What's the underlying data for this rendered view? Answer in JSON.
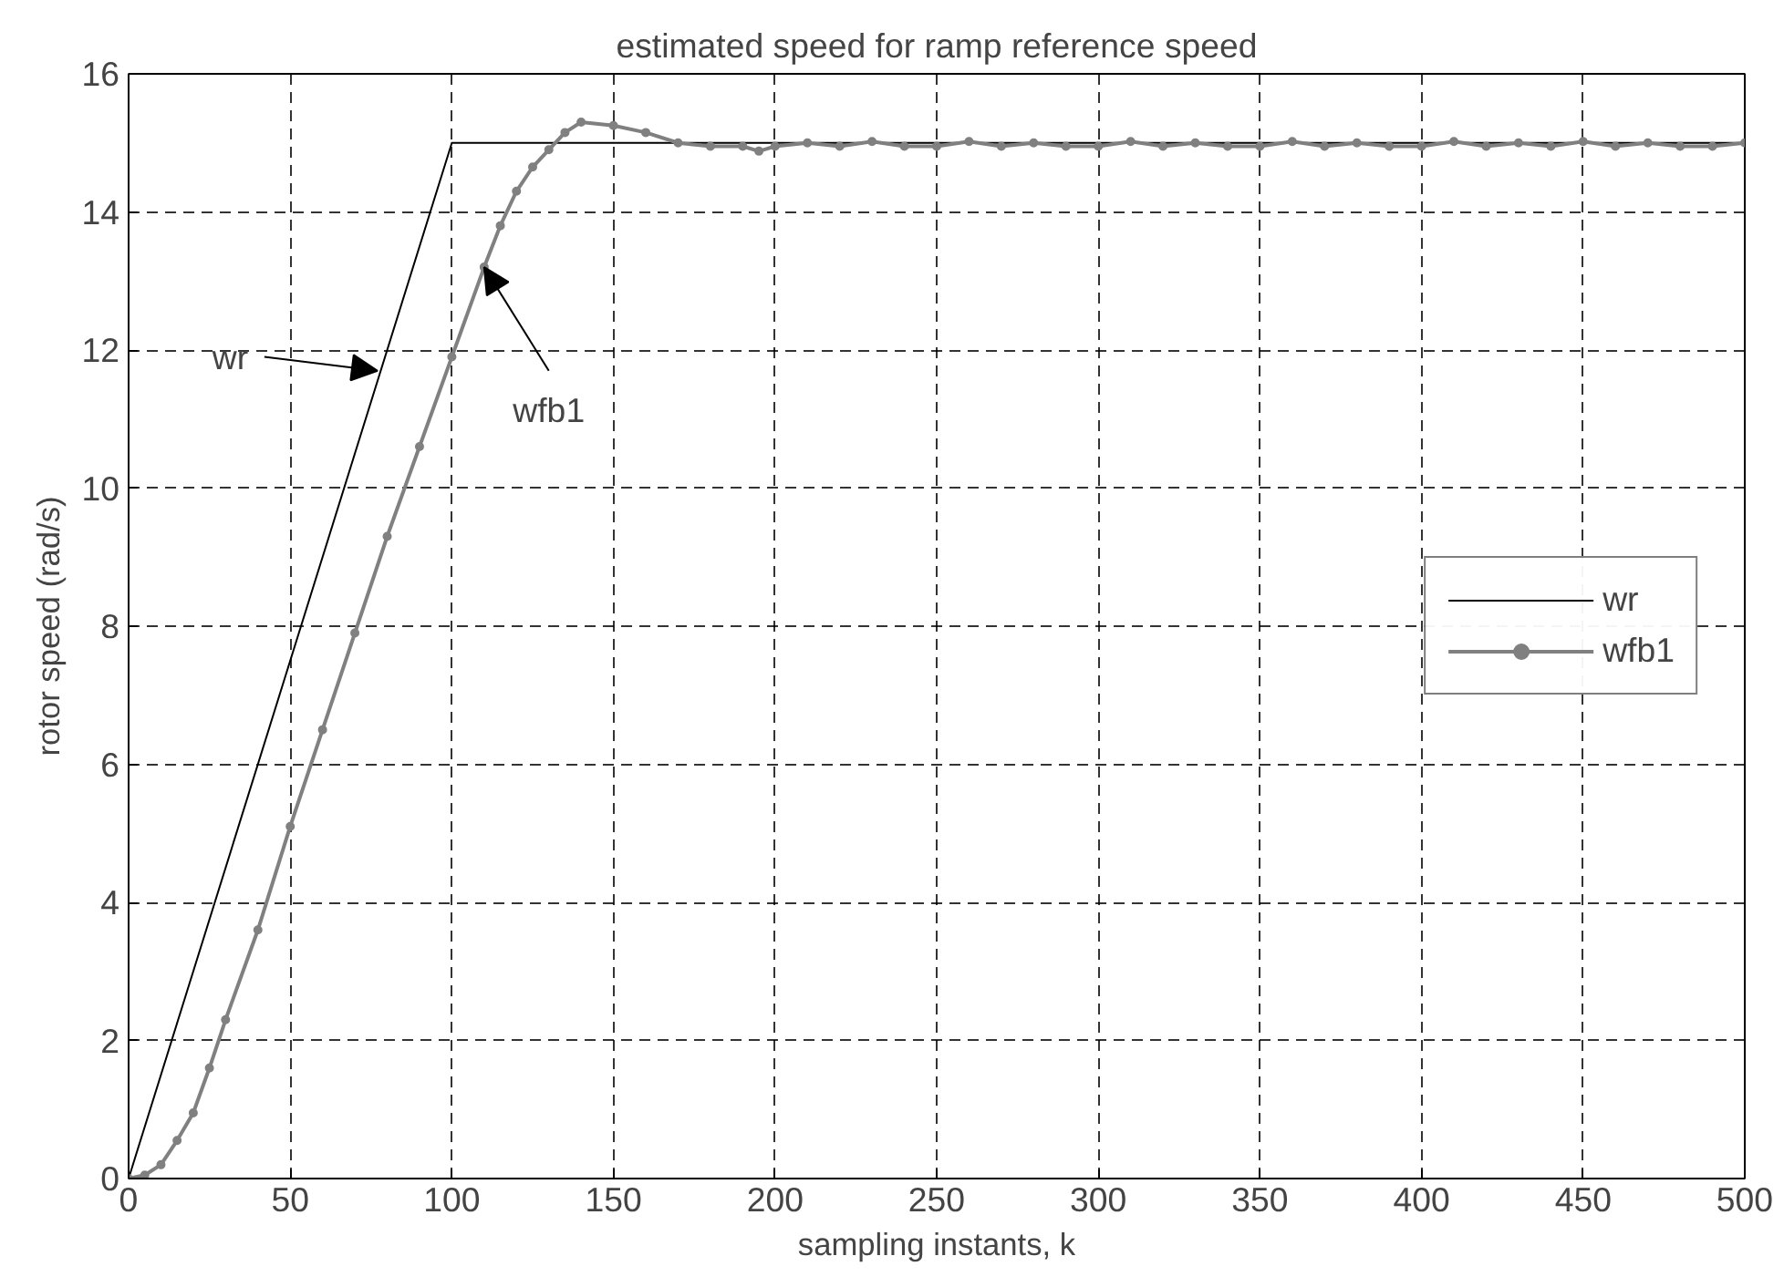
{
  "chart_data": {
    "type": "line",
    "title": "estimated speed for ramp reference speed",
    "xlabel": "sampling instants, k",
    "ylabel": "rotor speed (rad/s)",
    "xlim": [
      0,
      500
    ],
    "ylim": [
      0,
      16
    ],
    "xticks": [
      0,
      50,
      100,
      150,
      200,
      250,
      300,
      350,
      400,
      450,
      500
    ],
    "yticks": [
      0,
      2,
      4,
      6,
      8,
      10,
      12,
      14,
      16
    ],
    "grid": true,
    "legend": "right",
    "annotations": [
      {
        "text": "wr",
        "x": 77,
        "y": 11.7
      },
      {
        "text": "wfb1",
        "x": 110,
        "y": 13.2
      }
    ],
    "series": [
      {
        "name": "wr",
        "color": "#000000",
        "marker": "none",
        "x": [
          0,
          100,
          500
        ],
        "values": [
          0,
          15,
          15
        ]
      },
      {
        "name": "wfb1",
        "color": "#808080",
        "marker": "circle",
        "x": [
          0,
          5,
          10,
          15,
          20,
          25,
          30,
          40,
          50,
          60,
          70,
          80,
          90,
          100,
          110,
          115,
          120,
          125,
          130,
          135,
          140,
          150,
          160,
          170,
          180,
          190,
          195,
          200,
          210,
          220,
          230,
          240,
          250,
          260,
          270,
          280,
          290,
          300,
          310,
          320,
          330,
          340,
          350,
          360,
          370,
          380,
          390,
          400,
          410,
          420,
          430,
          440,
          450,
          460,
          470,
          480,
          490,
          500
        ],
        "values": [
          0,
          0.05,
          0.2,
          0.55,
          0.95,
          1.6,
          2.3,
          3.6,
          5.1,
          6.5,
          7.9,
          9.3,
          10.6,
          11.9,
          13.2,
          13.8,
          14.3,
          14.65,
          14.9,
          15.15,
          15.3,
          15.25,
          15.15,
          15.0,
          14.95,
          14.95,
          14.88,
          14.95,
          15.0,
          14.95,
          15.02,
          14.95,
          14.95,
          15.02,
          14.95,
          15.0,
          14.95,
          14.95,
          15.02,
          14.95,
          15.0,
          14.95,
          14.95,
          15.02,
          14.95,
          15.0,
          14.95,
          14.95,
          15.02,
          14.95,
          15.0,
          14.95,
          15.02,
          14.95,
          15.0,
          14.95,
          14.95,
          15.0
        ]
      }
    ]
  }
}
